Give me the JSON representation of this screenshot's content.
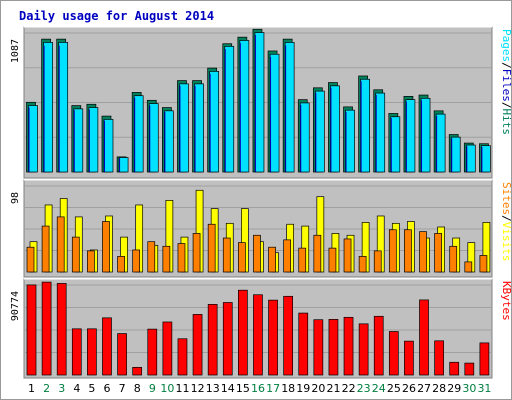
{
  "title": "Daily usage for August 2014",
  "colors": {
    "background": "#ffffff",
    "outer_border": "#999999",
    "panel_bg": "#c0c0c0",
    "title": "#0000c0",
    "hits": "#00805c",
    "files": "#00e0ff",
    "pages": "#0000c0",
    "visits": "#ffff00",
    "sites": "#ff8000",
    "kbytes": "#ff0000",
    "axis_text": "#000000",
    "weekend_label": "#008040"
  },
  "chart_data": [
    {
      "type": "bar",
      "panel": "top",
      "ymax_label": "1087",
      "ylim": [
        0,
        1087
      ],
      "categories": [
        "1",
        "2",
        "3",
        "4",
        "5",
        "6",
        "7",
        "8",
        "9",
        "10",
        "11",
        "12",
        "13",
        "14",
        "15",
        "16",
        "17",
        "18",
        "19",
        "20",
        "21",
        "22",
        "23",
        "24",
        "25",
        "26",
        "27",
        "28",
        "29",
        "30",
        "31"
      ],
      "weekend_days": [
        "2",
        "3",
        "9",
        "10",
        "16",
        "17",
        "23",
        "24",
        "30",
        "31"
      ],
      "legend": [
        "Pages",
        "/",
        "Files",
        "/",
        "Hits"
      ],
      "series": [
        {
          "name": "Hits",
          "values": [
            530,
            1010,
            1010,
            505,
            515,
            425,
            115,
            605,
            545,
            490,
            695,
            695,
            790,
            975,
            1025,
            1085,
            920,
            1010,
            550,
            640,
            680,
            495,
            730,
            625,
            445,
            575,
            585,
            465,
            285,
            220,
            215
          ]
        },
        {
          "name": "Files",
          "values": [
            505,
            985,
            985,
            480,
            490,
            400,
            110,
            580,
            520,
            465,
            670,
            670,
            765,
            955,
            1000,
            1060,
            895,
            985,
            525,
            615,
            655,
            470,
            705,
            600,
            420,
            550,
            560,
            440,
            265,
            205,
            200
          ]
        },
        {
          "name": "Pages",
          "values": [
            490,
            960,
            960,
            470,
            475,
            390,
            105,
            565,
            505,
            455,
            655,
            655,
            745,
            935,
            980,
            1040,
            875,
            960,
            510,
            600,
            640,
            455,
            690,
            585,
            410,
            535,
            545,
            425,
            255,
            195,
            190
          ]
        }
      ]
    },
    {
      "type": "bar",
      "panel": "middle",
      "ymax_label": "98",
      "ylim": [
        0,
        98
      ],
      "categories": [
        "1",
        "2",
        "3",
        "4",
        "5",
        "6",
        "7",
        "8",
        "9",
        "10",
        "11",
        "12",
        "13",
        "14",
        "15",
        "16",
        "17",
        "18",
        "19",
        "20",
        "21",
        "22",
        "23",
        "24",
        "25",
        "26",
        "27",
        "28",
        "29",
        "30",
        "31"
      ],
      "legend": [
        "Sites",
        "/",
        "Visits"
      ],
      "series": [
        {
          "name": "Visits",
          "values": [
            33,
            73,
            80,
            60,
            24,
            61,
            38,
            73,
            29,
            78,
            38,
            89,
            69,
            53,
            69,
            33,
            21,
            52,
            50,
            82,
            42,
            40,
            54,
            61,
            53,
            55,
            37,
            49,
            37,
            32,
            54
          ]
        },
        {
          "name": "Sites",
          "values": [
            27,
            50,
            60,
            38,
            23,
            55,
            17,
            24,
            33,
            28,
            31,
            42,
            52,
            37,
            32,
            40,
            27,
            35,
            26,
            40,
            26,
            36,
            17,
            23,
            46,
            46,
            44,
            42,
            28,
            11,
            18
          ]
        }
      ]
    },
    {
      "type": "bar",
      "panel": "bottom",
      "ymax_label": "90774",
      "ylim": [
        0,
        90774
      ],
      "categories": [
        "1",
        "2",
        "3",
        "4",
        "5",
        "6",
        "7",
        "8",
        "9",
        "10",
        "11",
        "12",
        "13",
        "14",
        "15",
        "16",
        "17",
        "18",
        "19",
        "20",
        "21",
        "22",
        "23",
        "24",
        "25",
        "26",
        "27",
        "28",
        "29",
        "30",
        "31"
      ],
      "legend": [
        "KBytes"
      ],
      "series": [
        {
          "name": "KBytes",
          "values": [
            87000,
            89700,
            88400,
            44600,
            44600,
            55200,
            40000,
            7400,
            44300,
            51200,
            35000,
            58500,
            68200,
            70000,
            81900,
            77500,
            72300,
            76000,
            59800,
            53400,
            53700,
            55700,
            49400,
            56700,
            42000,
            32700,
            72500,
            33000,
            12300,
            11500,
            31000
          ]
        }
      ]
    }
  ]
}
